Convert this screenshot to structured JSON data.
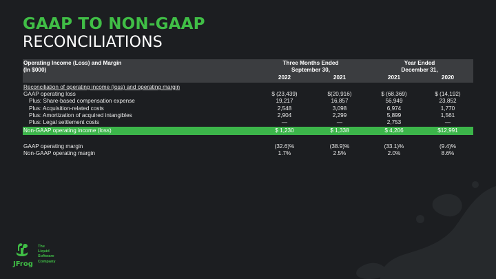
{
  "title_line1": "GAAP TO NON-GAAP",
  "title_line2": "RECONCILIATIONS",
  "header": {
    "label_line1": "Operating Income (Loss) and Margin",
    "label_line2": "(In $000)",
    "group1_line1": "Three Months Ended",
    "group1_line2": "September 30,",
    "group2_line1": "Year Ended",
    "group2_line2": "December 31,",
    "years": [
      "2022",
      "2021",
      "2021",
      "2020"
    ]
  },
  "section_title": "Reconciliation of operating income (loss) and operating margin",
  "rows": [
    {
      "label": "GAAP operating loss",
      "values": [
        "$ (23,439)",
        "$(20,916)",
        "$ (68,369)",
        "$ (14,192)"
      ]
    },
    {
      "label": "Plus: Share-based compensation expense",
      "values": [
        "19,217",
        "16,857",
        "56,949",
        "23,852"
      ]
    },
    {
      "label": "Plus: Acquisition-related costs",
      "values": [
        "2,548",
        "3,098",
        "6,974",
        "1,770"
      ]
    },
    {
      "label": "Plus: Amortization of acquired intangibles",
      "values": [
        "2,904",
        "2,299",
        "5,899",
        "1,561"
      ]
    },
    {
      "label": "Plus: Legal settlement costs",
      "values": [
        "—",
        "—",
        "2,753",
        "—"
      ]
    },
    {
      "label": "Non-GAAP operating income (loss)",
      "values": [
        "$ 1,230",
        "$ 1,338",
        "$ 4,206",
        "$12,991"
      ]
    }
  ],
  "margin_rows": [
    {
      "label": "GAAP operating margin",
      "values": [
        "(32.6)%",
        "(38.9)%",
        "(33.1)%",
        "(9.4)%"
      ]
    },
    {
      "label": "Non-GAAP operating margin",
      "values": [
        "1.7%",
        "2.5%",
        "2.0%",
        "8.6%"
      ]
    }
  ],
  "logo": {
    "name": "JFrog",
    "tagline": [
      "The",
      "Liquid",
      "Software",
      "Company"
    ]
  },
  "colors": {
    "background": "#1c1e21",
    "accent_green": "#40be46",
    "highlight_row": "#3cb54a",
    "header_band": "#3b3d40"
  }
}
